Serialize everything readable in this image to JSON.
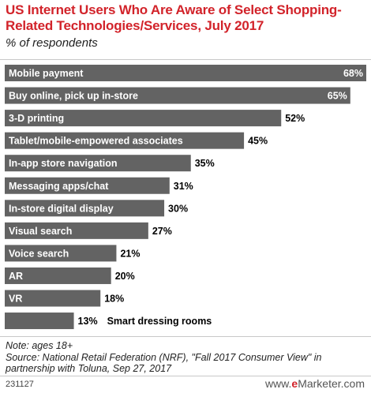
{
  "chart_data": {
    "type": "bar",
    "orientation": "horizontal",
    "title": "US Internet Users Who Are Aware of Select Shopping-Related Technologies/Services, July 2017",
    "subtitle": "% of respondents",
    "categories": [
      "Mobile payment",
      "Buy online, pick up in-store",
      "3-D printing",
      "Tablet/mobile-empowered associates",
      "In-app store navigation",
      "Messaging apps/chat",
      "In-store digital display",
      "Visual search",
      "Voice search",
      "AR",
      "VR",
      "Smart dressing rooms"
    ],
    "values": [
      68,
      65,
      52,
      45,
      35,
      31,
      30,
      27,
      21,
      20,
      18,
      13
    ],
    "value_labels": [
      "68%",
      "65%",
      "52%",
      "45%",
      "35%",
      "31%",
      "30%",
      "27%",
      "21%",
      "20%",
      "18%",
      "13%"
    ],
    "xlim": [
      0,
      68
    ],
    "grid": false,
    "legend": "none",
    "bar_color": "#636363"
  },
  "note": "Note: ages 18+",
  "source": "Source: National Retail Federation (NRF), \"Fall 2017 Consumer View\" in partnership with Toluna, Sep 27, 2017",
  "footer": {
    "chart_id": "231127",
    "brand_prefix": "www.",
    "brand_e": "e",
    "brand_rest": "Marketer",
    "brand_suffix": ".com"
  },
  "colors": {
    "title": "#d2232a",
    "bar": "#636363",
    "bar_text": "#ffffff"
  }
}
